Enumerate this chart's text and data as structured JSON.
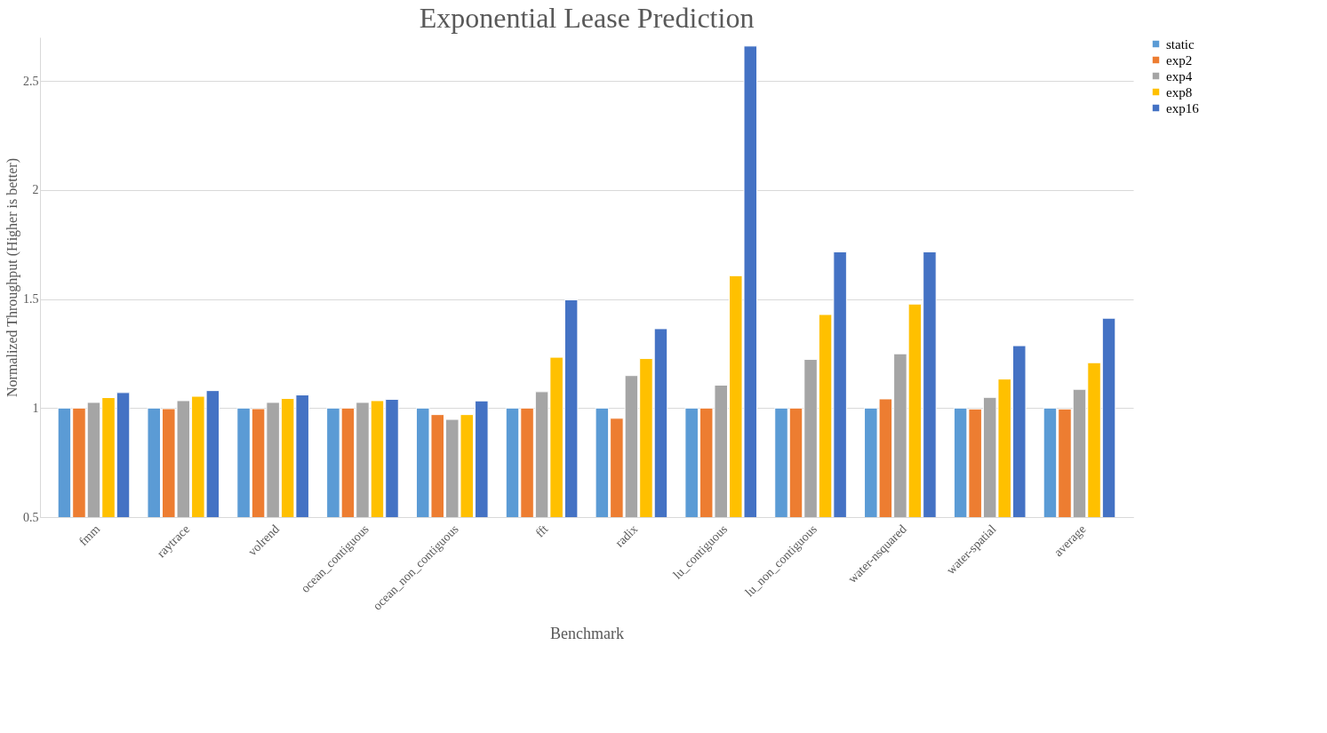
{
  "chart_data": {
    "type": "bar",
    "title": "Exponential Lease Prediction",
    "xlabel": "Benchmark",
    "ylabel": "Normalized Throughput (Higher is better)",
    "categories": [
      "fmm",
      "raytrace",
      "volrend",
      "ocean_contiguous",
      "ocean_non_contiguous",
      "fft",
      "radix",
      "lu_contiguous",
      "lu_non_contiguous",
      "water-nsquared",
      "water-spatial",
      "average"
    ],
    "series": [
      {
        "name": "static",
        "color": "#5b9bd5",
        "values": [
          1.0,
          1.0,
          1.0,
          1.0,
          1.0,
          1.0,
          1.0,
          1.0,
          1.0,
          1.0,
          1.0,
          1.0
        ]
      },
      {
        "name": "exp2",
        "color": "#ed7d31",
        "values": [
          1.0,
          0.997,
          0.997,
          1.0,
          0.97,
          1.0,
          0.953,
          1.0,
          1.0,
          1.042,
          0.996,
          0.996
        ]
      },
      {
        "name": "exp4",
        "color": "#a5a5a5",
        "values": [
          1.026,
          1.034,
          1.026,
          1.026,
          0.948,
          1.075,
          1.149,
          1.105,
          1.223,
          1.249,
          1.049,
          1.086
        ]
      },
      {
        "name": "exp8",
        "color": "#ffc000",
        "values": [
          1.048,
          1.054,
          1.044,
          1.034,
          0.97,
          1.233,
          1.227,
          1.607,
          1.429,
          1.477,
          1.133,
          1.208
        ]
      },
      {
        "name": "exp16",
        "color": "#4472c4",
        "values": [
          1.071,
          1.08,
          1.06,
          1.04,
          1.033,
          1.496,
          1.364,
          2.66,
          1.716,
          1.716,
          1.286,
          1.412
        ]
      }
    ],
    "ylim": [
      0.5,
      2.7
    ],
    "yticks": [
      0.5,
      1,
      1.5,
      2,
      2.5
    ],
    "grid": "y",
    "legend": "right"
  }
}
